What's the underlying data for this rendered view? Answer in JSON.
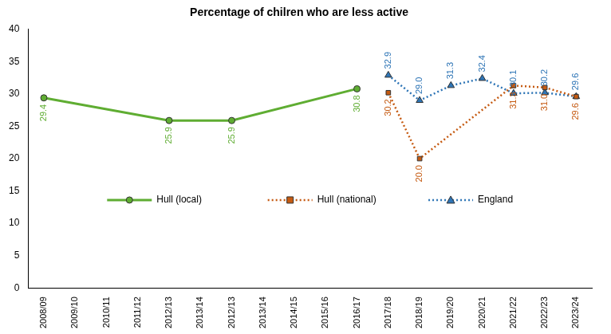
{
  "chart_data": {
    "type": "line",
    "title": "Percentage of chilren who are less active",
    "categories": [
      "2008/09",
      "2009/10",
      "2010/11",
      "2011/12",
      "2012/13",
      "2013/14",
      "2012/13",
      "2013/14",
      "2014/15",
      "2015/16",
      "2016/17",
      "2017/18",
      "2018/19",
      "2019/20",
      "2020/21",
      "2021/22",
      "2022/23",
      "2023/24"
    ],
    "series": [
      {
        "name": "Hull (local)",
        "color": "#5fad32",
        "marker": "circle",
        "line_style": "solid",
        "values": [
          29.4,
          null,
          null,
          null,
          25.9,
          null,
          25.9,
          null,
          null,
          null,
          30.8,
          null,
          null,
          null,
          null,
          null,
          null,
          null
        ],
        "value_labels": [
          "29.4",
          null,
          null,
          null,
          "25.9",
          null,
          "25.9",
          null,
          null,
          null,
          "30.8",
          null,
          null,
          null,
          null,
          null,
          null,
          null
        ]
      },
      {
        "name": "Hull (national)",
        "color": "#c55a11",
        "marker": "square",
        "line_style": "dotted",
        "values": [
          null,
          null,
          null,
          null,
          null,
          null,
          null,
          null,
          null,
          null,
          null,
          30.2,
          20.0,
          null,
          null,
          31.3,
          31.0,
          29.6
        ],
        "value_labels": [
          null,
          null,
          null,
          null,
          null,
          null,
          null,
          null,
          null,
          null,
          null,
          "30.2",
          "20.0",
          null,
          null,
          "31.3",
          "31.0",
          "29.6"
        ]
      },
      {
        "name": "England",
        "color": "#2e75b6",
        "marker": "triangle",
        "line_style": "dotted",
        "values": [
          null,
          null,
          null,
          null,
          null,
          null,
          null,
          null,
          null,
          null,
          null,
          32.9,
          29.0,
          31.3,
          32.4,
          30.1,
          30.2,
          29.6
        ],
        "value_labels": [
          null,
          null,
          null,
          null,
          null,
          null,
          null,
          null,
          null,
          null,
          null,
          "32.9",
          "29.0",
          "31.3",
          "32.4",
          "30.1",
          "30.2",
          "29.6"
        ]
      }
    ],
    "ylim": [
      0,
      40
    ],
    "yticks": [
      0,
      5,
      10,
      15,
      20,
      25,
      30,
      35,
      40
    ],
    "grid": false,
    "legend": "center",
    "data_labels": true
  }
}
